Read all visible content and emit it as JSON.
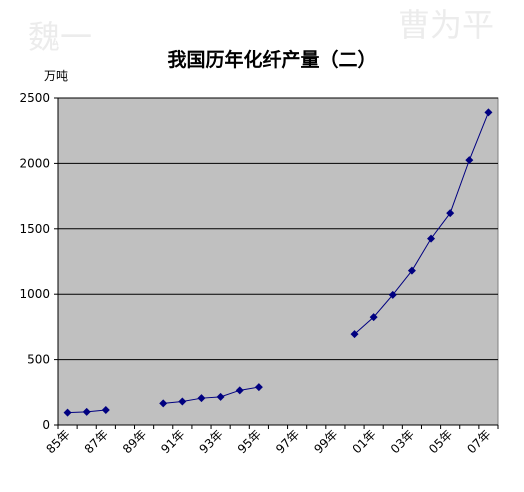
{
  "chart_data": {
    "type": "line",
    "title": "我国历年化纤产量（二）",
    "y_label": "万吨",
    "watermarks": [
      "魏一",
      "曹为平"
    ],
    "categories": [
      "85年",
      null,
      "87年",
      null,
      "89年",
      null,
      "91年",
      null,
      "93年",
      null,
      "95年",
      null,
      "97年",
      null,
      "99年",
      null,
      "01年",
      null,
      "03年",
      null,
      "05年",
      null,
      "07年"
    ],
    "series": [
      {
        "name": "化纤产量",
        "color": "#000080",
        "values": [
          95,
          100,
          115,
          null,
          null,
          165,
          180,
          205,
          215,
          265,
          290,
          null,
          null,
          null,
          null,
          695,
          825,
          995,
          1180,
          1425,
          1620,
          2025,
          2390
        ]
      }
    ],
    "ylim": [
      0,
      2500
    ],
    "yticks": [
      0,
      500,
      1000,
      1500,
      2000,
      2500
    ],
    "grid": true,
    "plot_color": "#c0c0c0"
  }
}
